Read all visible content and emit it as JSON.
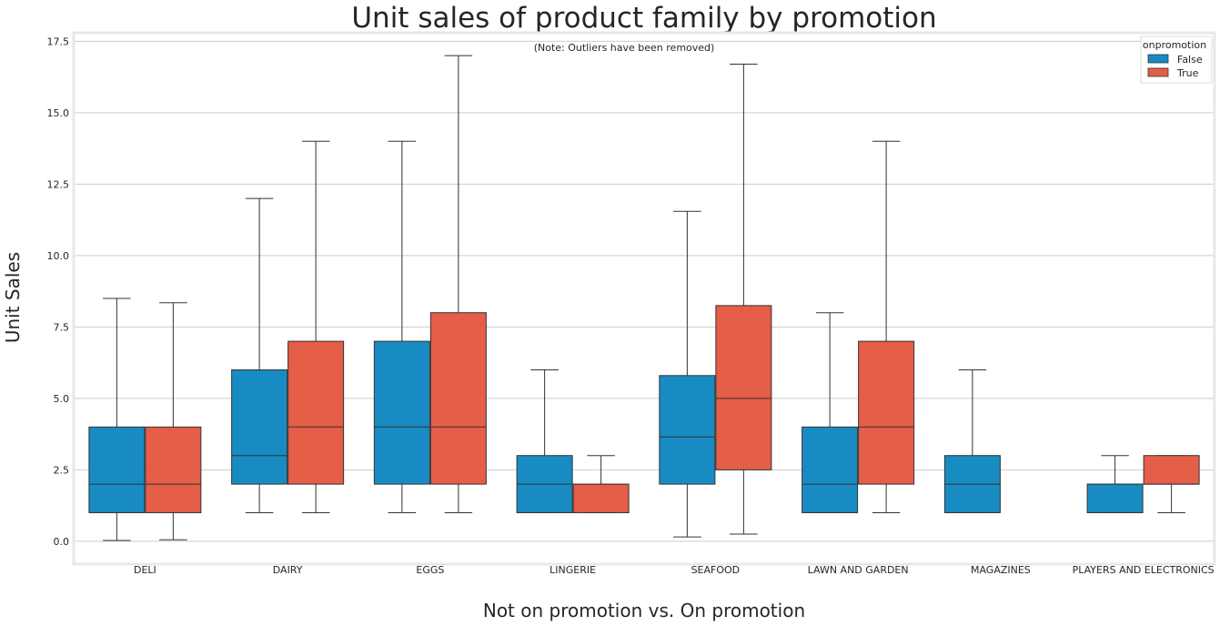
{
  "chart_data": {
    "type": "box",
    "title": "Unit sales of product family by promotion",
    "annotation": "(Note: Outliers have been removed)",
    "xlabel": "Not on promotion vs. On promotion",
    "ylabel": "Unit Sales",
    "ylim": [
      -0.8,
      17.8
    ],
    "yticks": [
      0.0,
      2.5,
      5.0,
      7.5,
      10.0,
      12.5,
      15.0,
      17.5
    ],
    "ytick_labels": [
      "0.0",
      "2.5",
      "5.0",
      "7.5",
      "10.0",
      "12.5",
      "15.0",
      "17.5"
    ],
    "grid": true,
    "legend": {
      "title": "onpromotion",
      "position": "top-right"
    },
    "categories": [
      "DELI",
      "DAIRY",
      "EGGS",
      "LINGERIE",
      "SEAFOOD",
      "LAWN AND GARDEN",
      "MAGAZINES",
      "PLAYERS AND ELECTRONICS"
    ],
    "series": [
      {
        "name": "False",
        "color": "#188bc2",
        "boxes": [
          {
            "whislo": 0.03,
            "q1": 1,
            "med": 2,
            "q3": 4,
            "whishi": 8.5
          },
          {
            "whislo": 1,
            "q1": 2,
            "med": 3,
            "q3": 6,
            "whishi": 12
          },
          {
            "whislo": 1,
            "q1": 2,
            "med": 4,
            "q3": 7,
            "whishi": 14
          },
          {
            "whislo": 1,
            "q1": 1,
            "med": 2,
            "q3": 3,
            "whishi": 6
          },
          {
            "whislo": 0.15,
            "q1": 2,
            "med": 3.65,
            "q3": 5.8,
            "whishi": 11.55
          },
          {
            "whislo": 1,
            "q1": 1,
            "med": 2,
            "q3": 4,
            "whishi": 8
          },
          {
            "whislo": 1,
            "q1": 1,
            "med": 2,
            "q3": 3,
            "whishi": 6
          },
          {
            "whislo": 1,
            "q1": 1,
            "med": 2,
            "q3": 2,
            "whishi": 3
          }
        ]
      },
      {
        "name": "True",
        "color": "#e55e47",
        "boxes": [
          {
            "whislo": 0.05,
            "q1": 1,
            "med": 2,
            "q3": 4,
            "whishi": 8.35
          },
          {
            "whislo": 1,
            "q1": 2,
            "med": 4,
            "q3": 7,
            "whishi": 14
          },
          {
            "whislo": 1,
            "q1": 2,
            "med": 4,
            "q3": 8,
            "whishi": 17
          },
          {
            "whislo": 1,
            "q1": 1,
            "med": 2,
            "q3": 2,
            "whishi": 3
          },
          {
            "whislo": 0.25,
            "q1": 2.5,
            "med": 5,
            "q3": 8.25,
            "whishi": 16.7
          },
          {
            "whislo": 1,
            "q1": 2,
            "med": 4,
            "q3": 7,
            "whishi": 14
          },
          null,
          {
            "whislo": 1,
            "q1": 2,
            "med": 2,
            "q3": 3,
            "whishi": 3
          }
        ]
      }
    ]
  }
}
